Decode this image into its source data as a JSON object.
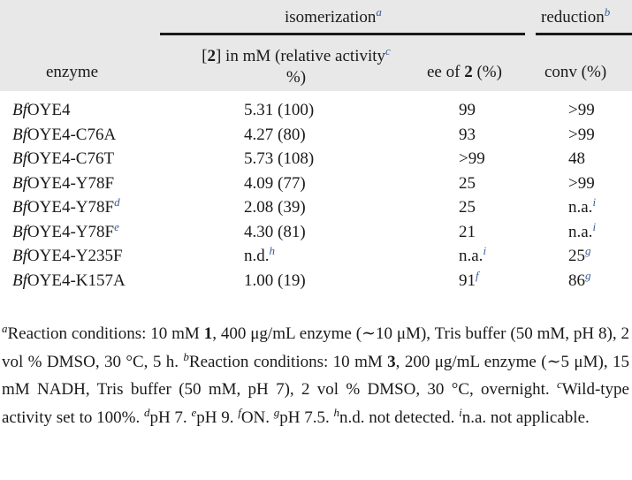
{
  "header": {
    "group_isomerization": "isomerization",
    "group_isomerization_fn": "a",
    "group_reduction": "reduction",
    "group_reduction_fn": "b",
    "col_enzyme": "enzyme",
    "col_conc_pre": "[",
    "col_conc_bold": "2",
    "col_conc_post": "] in mM (relative activity",
    "col_conc_fn": "c",
    "col_conc_line2": "%)",
    "col_ee_pre": "ee of ",
    "col_ee_bold": "2",
    "col_ee_post": " (%)",
    "col_conv": "conv (%)"
  },
  "rows": [
    {
      "prefix": "Bf",
      "name": "OYE4",
      "fn": "",
      "conc": "5.31 (100)",
      "conc_fn": "",
      "ee": "99",
      "ee_fn": "",
      "conv": ">99",
      "conv_fn": ""
    },
    {
      "prefix": "Bf",
      "name": "OYE4-C76A",
      "fn": "",
      "conc": "4.27 (80)",
      "conc_fn": "",
      "ee": "93",
      "ee_fn": "",
      "conv": ">99",
      "conv_fn": ""
    },
    {
      "prefix": "Bf",
      "name": "OYE4-C76T",
      "fn": "",
      "conc": "5.73 (108)",
      "conc_fn": "",
      "ee": ">99",
      "ee_fn": "",
      "conv": "48",
      "conv_fn": ""
    },
    {
      "prefix": "Bf",
      "name": "OYE4-Y78F",
      "fn": "",
      "conc": "4.09 (77)",
      "conc_fn": "",
      "ee": "25",
      "ee_fn": "",
      "conv": ">99",
      "conv_fn": ""
    },
    {
      "prefix": "Bf",
      "name": "OYE4-Y78F",
      "fn": "d",
      "conc": "2.08 (39)",
      "conc_fn": "",
      "ee": "25",
      "ee_fn": "",
      "conv": "n.a.",
      "conv_fn": "i"
    },
    {
      "prefix": "Bf",
      "name": "OYE4-Y78F",
      "fn": "e",
      "conc": "4.30 (81)",
      "conc_fn": "",
      "ee": "21",
      "ee_fn": "",
      "conv": "n.a.",
      "conv_fn": "i"
    },
    {
      "prefix": "Bf",
      "name": "OYE4-Y235F",
      "fn": "",
      "conc": "n.d.",
      "conc_fn": "h",
      "ee": "n.a.",
      "ee_fn": "i",
      "conv": "25",
      "conv_fn": "g"
    },
    {
      "prefix": "Bf",
      "name": "OYE4-K157A",
      "fn": "",
      "conc": "1.00 (19)",
      "conc_fn": "",
      "ee": "91",
      "ee_fn": "f",
      "conv": "86",
      "conv_fn": "g"
    }
  ],
  "footnotes": {
    "a_key": "a",
    "a_1": "Reaction conditions: 10 mM ",
    "a_1b": "1",
    "a_2": ", 400 μg/mL enzyme (∼10 μM), Tris buffer (50 mM, pH 8), 2 vol % DMSO, 30 °C, 5 h. ",
    "b_key": "b",
    "b_1": "Reaction conditions: 10 mM ",
    "b_1b": "3",
    "b_2": ", 200 μg/mL enzyme (∼5 μM), 15 mM NADH, Tris buffer (50 mM, pH 7), 2 vol % DMSO, 30 °C, overnight. ",
    "c_key": "c",
    "c_text": "Wild-type activity set to 100%. ",
    "d_key": "d",
    "d_text": "pH 7. ",
    "e_key": "e",
    "e_text": "pH 9. ",
    "f_key": "f",
    "f_text": "ON. ",
    "g_key": "g",
    "g_text": "pH 7.5. ",
    "h_key": "h",
    "h_text": "n.d. not detected. ",
    "i_key": "i",
    "i_text": "n.a. not applicable."
  }
}
